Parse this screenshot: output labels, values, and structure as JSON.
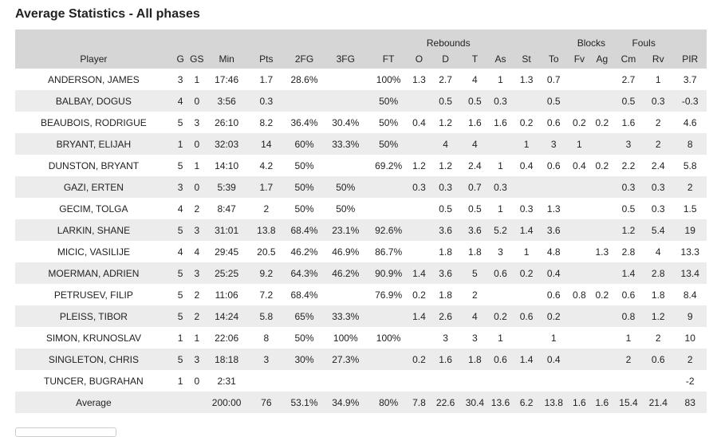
{
  "title": "Average Statistics - All phases",
  "group_headers": {
    "rebounds": "Rebounds",
    "blocks": "Blocks",
    "fouls": "Fouls"
  },
  "columns": [
    "Player",
    "G",
    "GS",
    "Min",
    "Pts",
    "2FG",
    "3FG",
    "FT",
    "O",
    "D",
    "T",
    "As",
    "St",
    "To",
    "Fv",
    "Ag",
    "Cm",
    "Rv",
    "PIR"
  ],
  "rows": [
    [
      "ANDERSON, JAMES",
      "3",
      "1",
      "17:46",
      "1.7",
      "28.6%",
      "",
      "100%",
      "1.3",
      "2.7",
      "4",
      "1",
      "1.3",
      "0.7",
      "",
      "",
      "2.7",
      "1",
      "3.7"
    ],
    [
      "BALBAY, DOGUS",
      "4",
      "0",
      "3:56",
      "0.3",
      "",
      "",
      "50%",
      "",
      "0.5",
      "0.5",
      "0.3",
      "",
      "0.5",
      "",
      "",
      "0.5",
      "0.3",
      "-0.3"
    ],
    [
      "BEAUBOIS, RODRIGUE",
      "5",
      "3",
      "26:10",
      "8.2",
      "36.4%",
      "30.4%",
      "50%",
      "0.4",
      "1.2",
      "1.6",
      "1.6",
      "0.2",
      "0.6",
      "0.2",
      "0.2",
      "1.6",
      "2",
      "4.6"
    ],
    [
      "BRYANT, ELIJAH",
      "1",
      "0",
      "32:03",
      "14",
      "60%",
      "33.3%",
      "50%",
      "",
      "4",
      "4",
      "",
      "1",
      "3",
      "1",
      "",
      "3",
      "2",
      "8"
    ],
    [
      "DUNSTON, BRYANT",
      "5",
      "1",
      "14:10",
      "4.2",
      "50%",
      "",
      "69.2%",
      "1.2",
      "1.2",
      "2.4",
      "1",
      "0.4",
      "0.6",
      "0.4",
      "0.2",
      "2.2",
      "2.4",
      "5.8"
    ],
    [
      "GAZI, ERTEN",
      "3",
      "0",
      "5:39",
      "1.7",
      "50%",
      "50%",
      "",
      "0.3",
      "0.3",
      "0.7",
      "0.3",
      "",
      "",
      "",
      "",
      "0.3",
      "0.3",
      "2"
    ],
    [
      "GECIM, TOLGA",
      "4",
      "2",
      "8:47",
      "2",
      "50%",
      "50%",
      "",
      "",
      "0.5",
      "0.5",
      "1",
      "0.3",
      "1.3",
      "",
      "",
      "0.5",
      "0.3",
      "1.5"
    ],
    [
      "LARKIN, SHANE",
      "5",
      "3",
      "31:01",
      "13.8",
      "68.4%",
      "23.1%",
      "92.6%",
      "",
      "3.6",
      "3.6",
      "5.2",
      "1.4",
      "3.6",
      "",
      "",
      "1.2",
      "5.4",
      "19"
    ],
    [
      "MICIC, VASILIJE",
      "4",
      "4",
      "29:45",
      "20.5",
      "46.2%",
      "46.9%",
      "86.7%",
      "",
      "1.8",
      "1.8",
      "3",
      "1",
      "4.8",
      "",
      "1.3",
      "2.8",
      "4",
      "13.3"
    ],
    [
      "MOERMAN, ADRIEN",
      "5",
      "3",
      "25:25",
      "9.2",
      "64.3%",
      "46.2%",
      "90.9%",
      "1.4",
      "3.6",
      "5",
      "0.6",
      "0.2",
      "0.4",
      "",
      "",
      "1.4",
      "2.8",
      "13.4"
    ],
    [
      "PETRUSEV, FILIP",
      "5",
      "2",
      "11:06",
      "7.2",
      "68.4%",
      "",
      "76.9%",
      "0.2",
      "1.8",
      "2",
      "",
      "",
      "0.6",
      "0.8",
      "0.2",
      "0.6",
      "1.8",
      "8.4"
    ],
    [
      "PLEISS, TIBOR",
      "5",
      "2",
      "14:24",
      "5.8",
      "65%",
      "33.3%",
      "",
      "1.4",
      "2.6",
      "4",
      "0.2",
      "0.6",
      "0.2",
      "",
      "",
      "0.8",
      "1.2",
      "9"
    ],
    [
      "SIMON, KRUNOSLAV",
      "1",
      "1",
      "22:06",
      "8",
      "50%",
      "100%",
      "100%",
      "",
      "3",
      "3",
      "1",
      "",
      "1",
      "",
      "",
      "1",
      "2",
      "10"
    ],
    [
      "SINGLETON, CHRIS",
      "5",
      "3",
      "18:18",
      "3",
      "30%",
      "27.3%",
      "",
      "0.2",
      "1.6",
      "1.8",
      "0.6",
      "1.4",
      "0.4",
      "",
      "",
      "2",
      "0.6",
      "2"
    ],
    [
      "TUNCER, BUGRAHAN",
      "1",
      "0",
      "2:31",
      "",
      "",
      "",
      "",
      "",
      "",
      "",
      "",
      "",
      "",
      "",
      "",
      "",
      "",
      "-2"
    ]
  ],
  "average_row": [
    "Average",
    "",
    "",
    "200:00",
    "76",
    "53.1%",
    "34.9%",
    "80%",
    "7.8",
    "22.6",
    "30.4",
    "13.6",
    "6.2",
    "13.8",
    "1.6",
    "1.6",
    "15.4",
    "21.4",
    "83"
  ]
}
